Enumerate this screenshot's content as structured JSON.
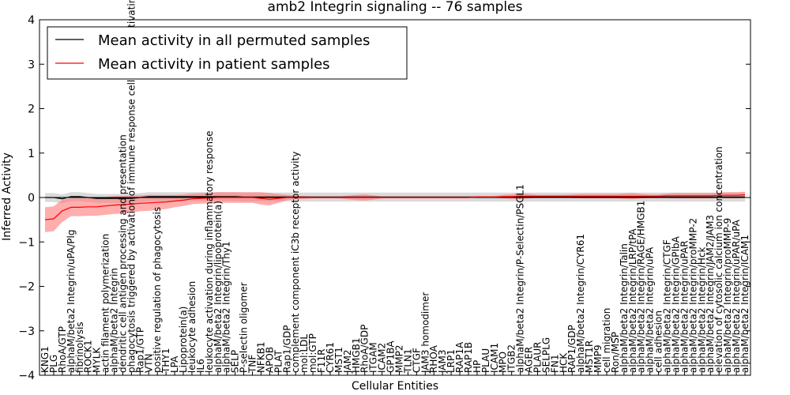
{
  "chart_data": {
    "type": "line",
    "title": "amb2 Integrin signaling -- 76 samples",
    "xlabel": "Cellular Entities",
    "ylabel": "Inferred Activity",
    "ylim": [
      -4,
      4
    ],
    "yticks": [
      -4,
      -3,
      -2,
      -1,
      0,
      1,
      2,
      3,
      4
    ],
    "legend_position": "top-left",
    "colors": {
      "permuted": "#000000",
      "patient": "#ff0000",
      "permuted_band": "#bbbbbb",
      "patient_band": "#ff7777"
    },
    "categories": [
      "KNG1",
      "PLG",
      "RhoA/GTP",
      "alphaM/beta2 Integrin/uPA/Plg",
      "fibrinolysis",
      "ROCK1",
      "MYLK",
      "actin filament polymerization",
      "alphaM/beta2 Integrin",
      "dendritic cell antigen processing and presentation",
      "phagocytosis triggered by activation of immune response cell surface activating receptor",
      "Rap1/GTP",
      "VTN",
      "positive regulation of phagocytosis",
      "THY1",
      "LPA",
      "Lipoprotein(a)",
      "leukocyte adhesion",
      "IL6",
      "leukocyte activation during inflammatory response",
      "alphaM/beta2 Integrin/lipoprotein(a)",
      "alphaM/beta2 Integrin/Thy1",
      "SELP",
      "P-selectin oligomer",
      "TNF",
      "NFKB1",
      "APOB",
      "PLAT",
      "Rap1/GDP",
      "complement component iC3b receptor activity",
      "mol:LDL",
      "mol:GTP",
      "F11R",
      "CYR61",
      "MST1",
      "JAM2",
      "HMGB1",
      "RhoA/GDP",
      "ITGAM",
      "ICAM2",
      "GP1BA",
      "MMP2",
      "TLN1",
      "CTGF",
      "JAM3 homodimer",
      "RHOA",
      "JAM3",
      "LRP1",
      "RAP1A",
      "RAP1B",
      "HP",
      "PLAU",
      "ICAM1",
      "MPO",
      "ITGB2",
      "alphaM/beta2 Integrin/P-Selectin/PSGL1",
      "AGER",
      "PLAUR",
      "SELPLG",
      "FN1",
      "HCK",
      "RAP1/GDP",
      "alphaM/beta2 Integrin/CYR61",
      "MST1R",
      "MMP9",
      "cell migration",
      "Ron/MSP",
      "alphaM/beta2 Integrin/Talin",
      "alphaM/beta2 Integrin/LRP/tPA",
      "alphaM/beta2 Integrin/RAGE/HMGB1",
      "alphaM/beta2 Integrin/uPA",
      "cell adhesion",
      "alphaM/beta2 Integrin/CTGF",
      "alphaM/beta2 Integrin/GPIbA",
      "alphaM/beta2 Integrin/uPAR",
      "alphaM/beta2 Integrin/proMMP-2",
      "alphaM/beta2 Integrin/Hck",
      "alphaM/beta2 Integrin/JAM2/JAM3",
      "elevation of cytosolic calcium ion concentration",
      "alphaM/beta2 Integrin/proMMP-9",
      "alphaM/beta2 Integrin/uPAR/uPA",
      "alphaM/beta2 Integrin/ICAM1"
    ],
    "series": [
      {
        "name": "Mean activity in all permuted samples",
        "color": "#000000",
        "values": [
          0.0,
          0.0,
          -0.03,
          0.02,
          0.02,
          0.0,
          -0.02,
          -0.02,
          -0.02,
          -0.02,
          -0.02,
          0.0,
          0.02,
          0.02,
          0.02,
          0.02,
          0.02,
          0.02,
          0.02,
          0.02,
          0.02,
          0.02,
          0.02,
          0.01,
          0.01,
          0.01,
          0.01,
          0.01,
          0.01,
          0.01,
          0.01,
          0.01,
          0.01,
          0.01,
          0.01,
          0.01,
          0.01,
          0.01,
          0.01,
          0.01,
          0.01,
          0.01,
          0.01,
          0.01,
          0.01,
          0.01,
          0.01,
          0.01,
          0.01,
          0.01,
          0.01,
          0.01,
          0.01,
          0.01,
          0.01,
          0.01,
          0.01,
          0.01,
          0.01,
          0.01,
          0.01,
          0.01,
          0.01,
          0.01,
          0.01,
          0.01,
          0.01,
          0.01,
          0.01,
          0.01,
          0.01,
          0.01,
          0.01,
          0.01,
          0.01,
          0.01,
          0.01,
          0.01,
          0.01,
          0.01,
          0.01,
          0.01
        ],
        "band_halfwidth": 0.1
      },
      {
        "name": "Mean activity in patient samples",
        "color": "#ff0000",
        "values": [
          -0.5,
          -0.48,
          -0.3,
          -0.22,
          -0.22,
          -0.21,
          -0.21,
          -0.19,
          -0.17,
          -0.16,
          -0.15,
          -0.13,
          -0.12,
          -0.11,
          -0.1,
          -0.08,
          -0.06,
          -0.03,
          -0.02,
          -0.01,
          0.0,
          0.0,
          0.0,
          0.0,
          0.0,
          -0.02,
          -0.04,
          -0.02,
          0.0,
          0.0,
          0.0,
          0.0,
          0.0,
          0.0,
          0.0,
          0.0,
          0.0,
          0.0,
          0.0,
          0.0,
          0.0,
          0.0,
          0.0,
          0.0,
          0.0,
          0.0,
          0.0,
          0.0,
          0.0,
          0.0,
          0.01,
          0.01,
          0.01,
          0.02,
          0.02,
          0.03,
          0.03,
          0.03,
          0.03,
          0.03,
          0.03,
          0.03,
          0.03,
          0.03,
          0.03,
          0.03,
          0.03,
          0.03,
          0.03,
          0.03,
          0.03,
          0.03,
          0.04,
          0.04,
          0.04,
          0.04,
          0.04,
          0.04,
          0.05,
          0.05,
          0.05,
          0.06
        ],
        "band_halfwidth": [
          0.28,
          0.28,
          0.25,
          0.2,
          0.2,
          0.2,
          0.2,
          0.2,
          0.2,
          0.2,
          0.19,
          0.18,
          0.18,
          0.17,
          0.16,
          0.14,
          0.13,
          0.12,
          0.12,
          0.12,
          0.12,
          0.12,
          0.12,
          0.12,
          0.12,
          0.14,
          0.14,
          0.1,
          0.06,
          0.04,
          0.03,
          0.02,
          0.02,
          0.02,
          0.02,
          0.04,
          0.06,
          0.07,
          0.05,
          0.02,
          0.02,
          0.02,
          0.02,
          0.02,
          0.02,
          0.02,
          0.02,
          0.02,
          0.02,
          0.02,
          0.02,
          0.02,
          0.02,
          0.04,
          0.05,
          0.06,
          0.05,
          0.03,
          0.03,
          0.03,
          0.03,
          0.04,
          0.05,
          0.05,
          0.05,
          0.05,
          0.05,
          0.06,
          0.07,
          0.05,
          0.04,
          0.04,
          0.05,
          0.06,
          0.06,
          0.06,
          0.06,
          0.06,
          0.06,
          0.07,
          0.07,
          0.07
        ]
      }
    ]
  }
}
